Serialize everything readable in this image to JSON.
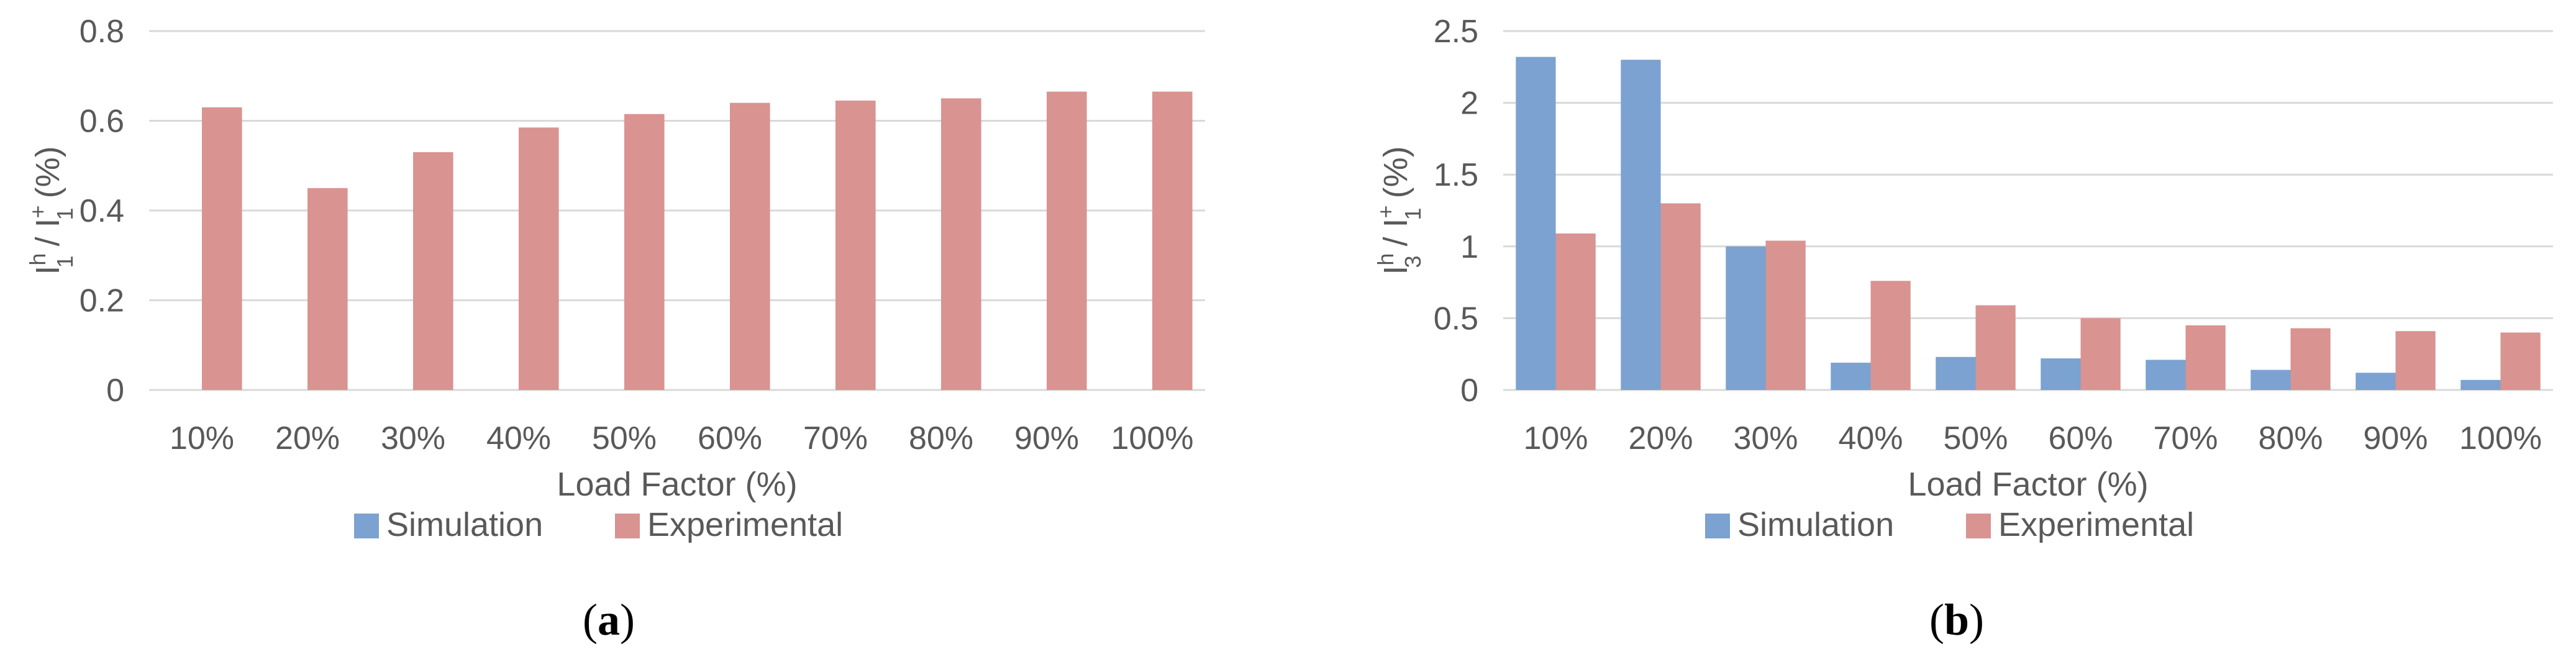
{
  "colors": {
    "simulation": "#7BA2D0",
    "experimental": "#D99391",
    "grid": "#D9D9D9",
    "text": "#595959"
  },
  "legend": [
    "Simulation",
    "Experimental"
  ],
  "panels": [
    {
      "label_open": "(",
      "label_letter": "a",
      "label_close": ")"
    },
    {
      "label_open": "(",
      "label_letter": "b",
      "label_close": ")"
    }
  ],
  "chart_data": [
    {
      "type": "bar",
      "categories": [
        "10%",
        "20%",
        "30%",
        "40%",
        "50%",
        "60%",
        "70%",
        "80%",
        "90%",
        "100%"
      ],
      "series": [
        {
          "name": "Simulation",
          "values": [
            0,
            0,
            0,
            0,
            0,
            0,
            0,
            0,
            0,
            0
          ]
        },
        {
          "name": "Experimental",
          "values": [
            0.63,
            0.45,
            0.53,
            0.585,
            0.615,
            0.64,
            0.645,
            0.65,
            0.665,
            0.665
          ]
        }
      ],
      "xlabel": "Load Factor (%)",
      "ylabel": {
        "main": "I",
        "sup1": "h",
        "sub1": "1",
        "mid": " / I",
        "sup2": "+",
        "sub2": "1",
        "end": " (%)"
      },
      "ylim": [
        0,
        0.8
      ],
      "yticks": [
        "0",
        "0.2",
        "0.4",
        "0.6",
        "0.8"
      ],
      "grid": true,
      "legend_position": "bottom"
    },
    {
      "type": "bar",
      "categories": [
        "10%",
        "20%",
        "30%",
        "40%",
        "50%",
        "60%",
        "70%",
        "80%",
        "90%",
        "100%"
      ],
      "series": [
        {
          "name": "Simulation",
          "values": [
            2.32,
            2.3,
            1.0,
            0.19,
            0.23,
            0.22,
            0.21,
            0.14,
            0.12,
            0.07
          ]
        },
        {
          "name": "Experimental",
          "values": [
            1.09,
            1.3,
            1.04,
            0.76,
            0.59,
            0.5,
            0.45,
            0.43,
            0.41,
            0.4
          ]
        }
      ],
      "xlabel": "Load Factor (%)",
      "ylabel": {
        "main": "I",
        "sup1": "h",
        "sub1": "3",
        "mid": " / I",
        "sup2": "+",
        "sub2": "1",
        "end": " (%)"
      },
      "ylim": [
        0,
        2.5
      ],
      "yticks": [
        "0",
        "0.5",
        "1",
        "1.5",
        "2",
        "2.5"
      ],
      "grid": true,
      "legend_position": "bottom"
    }
  ]
}
